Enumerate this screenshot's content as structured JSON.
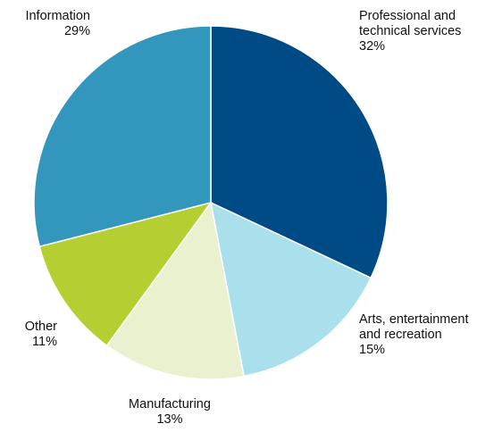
{
  "chart_data": {
    "type": "pie",
    "categories": [
      "Professional and technical services",
      "Arts, entertainment and recreation",
      "Manufacturing",
      "Other",
      "Information"
    ],
    "values": [
      32,
      15,
      13,
      11,
      29
    ],
    "value_labels": [
      "32%",
      "15%",
      "13%",
      "11%",
      "29%"
    ],
    "colors": [
      "#004a86",
      "#aadfec",
      "#e9f1cf",
      "#b5cf33",
      "#3397bd"
    ]
  }
}
